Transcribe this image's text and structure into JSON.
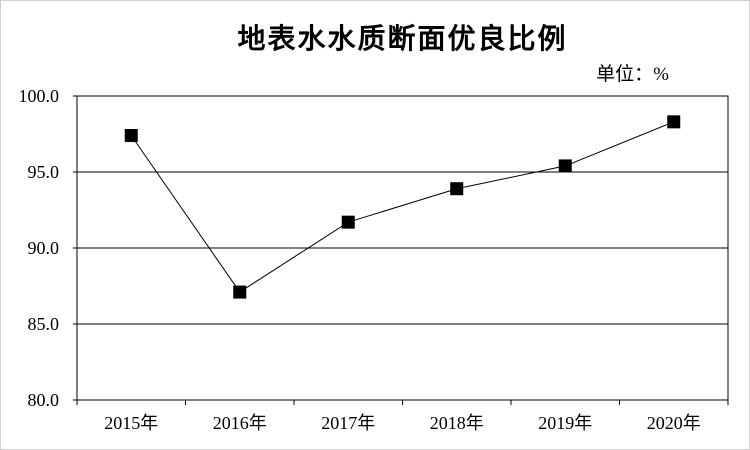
{
  "figure": {
    "title": "地表水水质断面优良比例",
    "unit_label": "单位：%"
  },
  "chart_data": {
    "type": "line",
    "title": "地表水水质断面优良比例",
    "unit": "单位：%",
    "categories": [
      "2015年",
      "2016年",
      "2017年",
      "2018年",
      "2019年",
      "2020年"
    ],
    "series": [
      {
        "name": "地表水水质断面优良比例",
        "values": [
          97.4,
          87.1,
          91.7,
          93.9,
          95.4,
          98.3
        ]
      }
    ],
    "xlabel": "",
    "ylabel": "",
    "ylim": [
      80,
      100
    ],
    "ytick_step": 5,
    "ytick_labels": [
      "80.0",
      "85.0",
      "90.0",
      "95.0",
      "100.0"
    ],
    "grid": true,
    "legend_position": "none",
    "line_color": "#000000",
    "marker": "square",
    "marker_color": "#000000",
    "axis_color": "#000000",
    "background_color": "#ffffff",
    "outer_border_color": "#cfcfcf"
  }
}
